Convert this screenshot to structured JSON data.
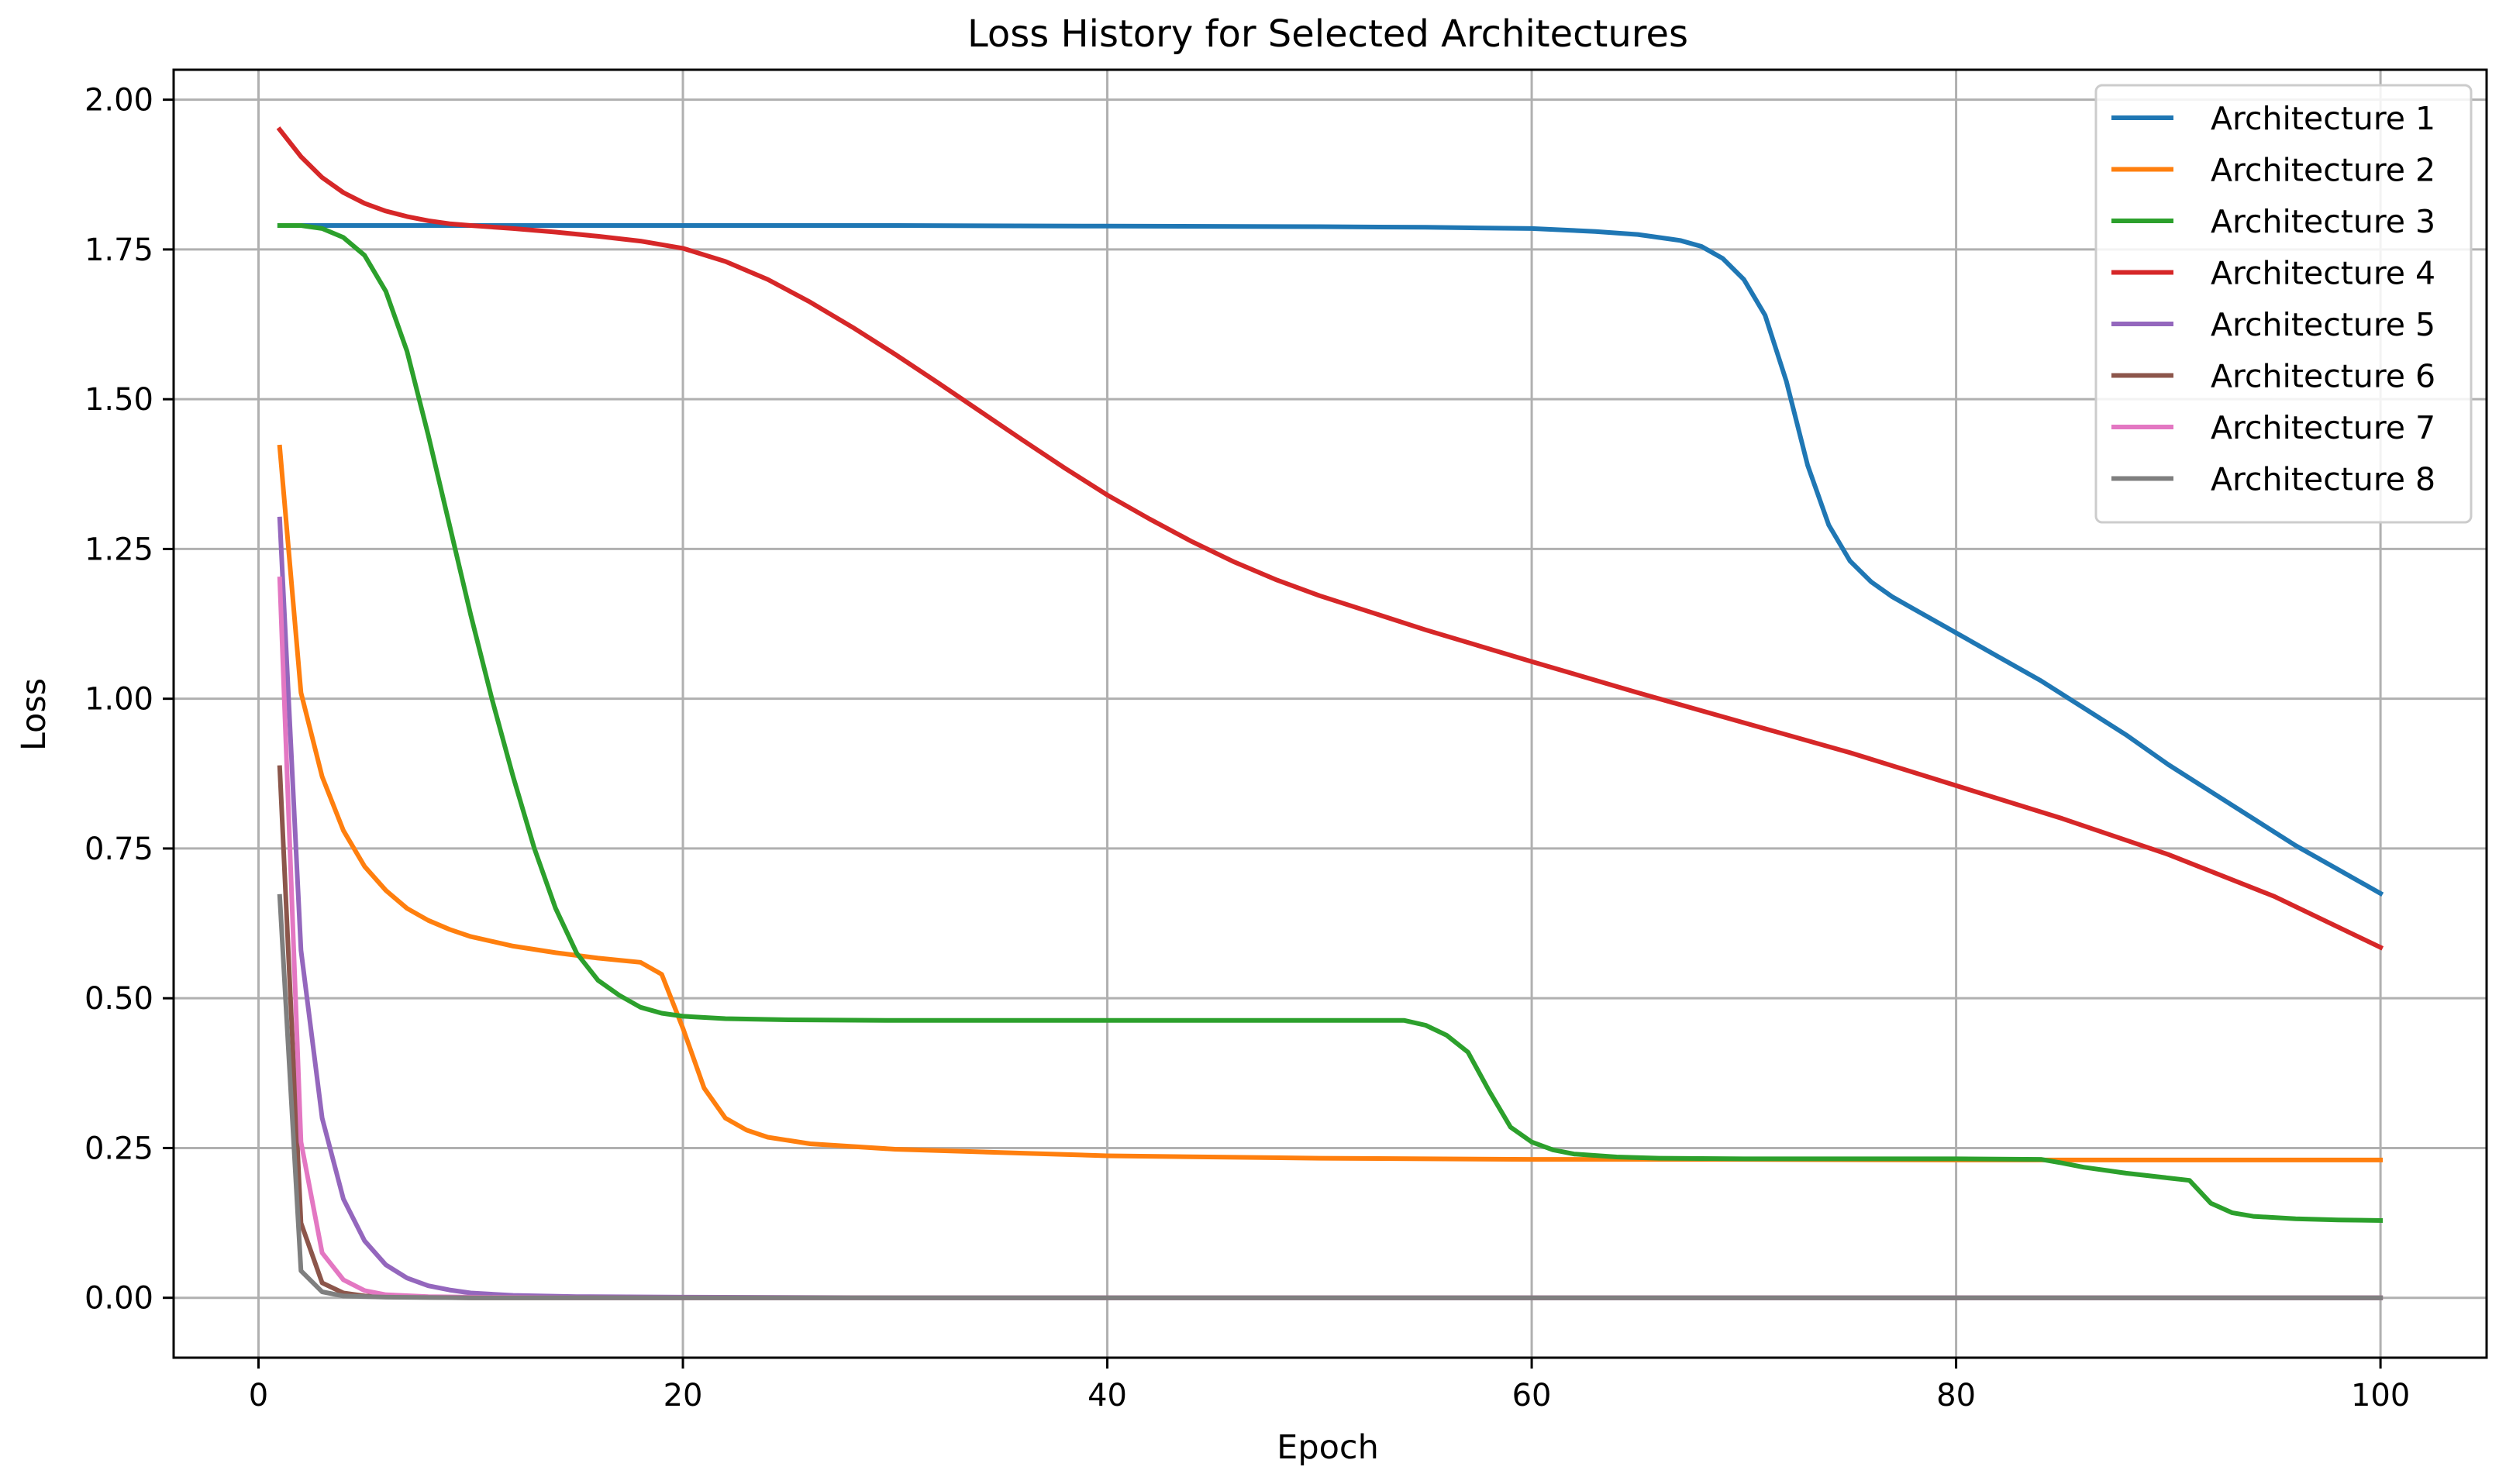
{
  "chart_data": {
    "type": "line",
    "title": "Loss History for Selected Architectures",
    "xlabel": "Epoch",
    "ylabel": "Loss",
    "xlim": [
      -4,
      105
    ],
    "ylim": [
      -0.1,
      2.05
    ],
    "xticks": [
      0,
      20,
      40,
      60,
      80,
      100
    ],
    "yticks": [
      0.0,
      0.25,
      0.5,
      0.75,
      1.0,
      1.25,
      1.5,
      1.75,
      2.0
    ],
    "xtick_labels": [
      "0",
      "20",
      "40",
      "60",
      "80",
      "100"
    ],
    "ytick_labels": [
      "0.00",
      "0.25",
      "0.50",
      "0.75",
      "1.00",
      "1.25",
      "1.50",
      "1.75",
      "2.00"
    ],
    "grid": true,
    "legend_position": "top-right",
    "x": "epochs 1-100",
    "series": [
      {
        "name": "Architecture 1",
        "color": "#1f77b4",
        "points": [
          [
            1,
            1.79
          ],
          [
            10,
            1.79
          ],
          [
            20,
            1.79
          ],
          [
            30,
            1.79
          ],
          [
            40,
            1.789
          ],
          [
            50,
            1.788
          ],
          [
            55,
            1.787
          ],
          [
            60,
            1.785
          ],
          [
            63,
            1.78
          ],
          [
            65,
            1.775
          ],
          [
            67,
            1.765
          ],
          [
            68,
            1.755
          ],
          [
            69,
            1.735
          ],
          [
            70,
            1.7
          ],
          [
            71,
            1.64
          ],
          [
            72,
            1.53
          ],
          [
            73,
            1.39
          ],
          [
            74,
            1.29
          ],
          [
            75,
            1.23
          ],
          [
            76,
            1.195
          ],
          [
            77,
            1.17
          ],
          [
            78,
            1.15
          ],
          [
            80,
            1.11
          ],
          [
            82,
            1.07
          ],
          [
            84,
            1.03
          ],
          [
            86,
            0.985
          ],
          [
            88,
            0.94
          ],
          [
            90,
            0.89
          ],
          [
            92,
            0.845
          ],
          [
            94,
            0.8
          ],
          [
            96,
            0.755
          ],
          [
            98,
            0.715
          ],
          [
            100,
            0.675
          ]
        ]
      },
      {
        "name": "Architecture 2",
        "color": "#ff7f0e",
        "points": [
          [
            1,
            1.42
          ],
          [
            2,
            1.01
          ],
          [
            3,
            0.87
          ],
          [
            4,
            0.78
          ],
          [
            5,
            0.72
          ],
          [
            6,
            0.68
          ],
          [
            7,
            0.65
          ],
          [
            8,
            0.63
          ],
          [
            9,
            0.615
          ],
          [
            10,
            0.603
          ],
          [
            12,
            0.587
          ],
          [
            14,
            0.576
          ],
          [
            16,
            0.567
          ],
          [
            18,
            0.56
          ],
          [
            19,
            0.54
          ],
          [
            20,
            0.45
          ],
          [
            21,
            0.35
          ],
          [
            22,
            0.3
          ],
          [
            23,
            0.28
          ],
          [
            24,
            0.268
          ],
          [
            26,
            0.257
          ],
          [
            30,
            0.248
          ],
          [
            40,
            0.237
          ],
          [
            50,
            0.233
          ],
          [
            60,
            0.231
          ],
          [
            70,
            0.231
          ],
          [
            80,
            0.23
          ],
          [
            90,
            0.23
          ],
          [
            100,
            0.23
          ]
        ]
      },
      {
        "name": "Architecture 3",
        "color": "#2ca02c",
        "points": [
          [
            1,
            1.79
          ],
          [
            2,
            1.79
          ],
          [
            3,
            1.785
          ],
          [
            4,
            1.77
          ],
          [
            5,
            1.74
          ],
          [
            6,
            1.68
          ],
          [
            7,
            1.58
          ],
          [
            8,
            1.44
          ],
          [
            9,
            1.29
          ],
          [
            10,
            1.14
          ],
          [
            11,
            1.0
          ],
          [
            12,
            0.87
          ],
          [
            13,
            0.75
          ],
          [
            14,
            0.65
          ],
          [
            15,
            0.575
          ],
          [
            16,
            0.53
          ],
          [
            17,
            0.505
          ],
          [
            18,
            0.485
          ],
          [
            19,
            0.475
          ],
          [
            20,
            0.47
          ],
          [
            22,
            0.466
          ],
          [
            25,
            0.464
          ],
          [
            30,
            0.463
          ],
          [
            40,
            0.463
          ],
          [
            50,
            0.463
          ],
          [
            54,
            0.463
          ],
          [
            55,
            0.455
          ],
          [
            56,
            0.438
          ],
          [
            57,
            0.41
          ],
          [
            58,
            0.345
          ],
          [
            59,
            0.285
          ],
          [
            60,
            0.26
          ],
          [
            61,
            0.247
          ],
          [
            62,
            0.24
          ],
          [
            64,
            0.235
          ],
          [
            66,
            0.233
          ],
          [
            70,
            0.232
          ],
          [
            80,
            0.232
          ],
          [
            84,
            0.231
          ],
          [
            85,
            0.225
          ],
          [
            86,
            0.218
          ],
          [
            88,
            0.208
          ],
          [
            90,
            0.2
          ],
          [
            91,
            0.196
          ],
          [
            92,
            0.158
          ],
          [
            93,
            0.142
          ],
          [
            94,
            0.136
          ],
          [
            96,
            0.132
          ],
          [
            98,
            0.13
          ],
          [
            100,
            0.129
          ]
        ]
      },
      {
        "name": "Architecture 4",
        "color": "#d62728",
        "points": [
          [
            1,
            1.95
          ],
          [
            2,
            1.905
          ],
          [
            3,
            1.87
          ],
          [
            4,
            1.845
          ],
          [
            5,
            1.827
          ],
          [
            6,
            1.814
          ],
          [
            7,
            1.805
          ],
          [
            8,
            1.798
          ],
          [
            9,
            1.793
          ],
          [
            10,
            1.79
          ],
          [
            12,
            1.785
          ],
          [
            14,
            1.779
          ],
          [
            16,
            1.772
          ],
          [
            18,
            1.764
          ],
          [
            20,
            1.752
          ],
          [
            22,
            1.73
          ],
          [
            24,
            1.7
          ],
          [
            26,
            1.662
          ],
          [
            28,
            1.62
          ],
          [
            30,
            1.575
          ],
          [
            32,
            1.528
          ],
          [
            34,
            1.48
          ],
          [
            36,
            1.432
          ],
          [
            38,
            1.385
          ],
          [
            40,
            1.34
          ],
          [
            42,
            1.3
          ],
          [
            44,
            1.262
          ],
          [
            46,
            1.228
          ],
          [
            48,
            1.198
          ],
          [
            50,
            1.172
          ],
          [
            55,
            1.115
          ],
          [
            60,
            1.062
          ],
          [
            65,
            1.01
          ],
          [
            70,
            0.96
          ],
          [
            75,
            0.91
          ],
          [
            80,
            0.855
          ],
          [
            85,
            0.8
          ],
          [
            90,
            0.74
          ],
          [
            95,
            0.67
          ],
          [
            100,
            0.585
          ]
        ]
      },
      {
        "name": "Architecture 5",
        "color": "#9467bd",
        "points": [
          [
            1,
            1.3
          ],
          [
            2,
            0.58
          ],
          [
            3,
            0.3
          ],
          [
            4,
            0.165
          ],
          [
            5,
            0.095
          ],
          [
            6,
            0.055
          ],
          [
            7,
            0.033
          ],
          [
            8,
            0.02
          ],
          [
            9,
            0.013
          ],
          [
            10,
            0.008
          ],
          [
            12,
            0.004
          ],
          [
            15,
            0.002
          ],
          [
            20,
            0.001
          ],
          [
            30,
            0.0
          ],
          [
            50,
            0.0
          ],
          [
            100,
            0.0
          ]
        ]
      },
      {
        "name": "Architecture 6",
        "color": "#8c564b",
        "points": [
          [
            1,
            0.885
          ],
          [
            2,
            0.125
          ],
          [
            3,
            0.025
          ],
          [
            4,
            0.008
          ],
          [
            5,
            0.003
          ],
          [
            7,
            0.001
          ],
          [
            10,
            0.0
          ],
          [
            50,
            0.0
          ],
          [
            100,
            0.0
          ]
        ]
      },
      {
        "name": "Architecture 7",
        "color": "#e377c2",
        "points": [
          [
            1,
            1.2
          ],
          [
            2,
            0.26
          ],
          [
            3,
            0.075
          ],
          [
            4,
            0.03
          ],
          [
            5,
            0.012
          ],
          [
            6,
            0.005
          ],
          [
            8,
            0.002
          ],
          [
            10,
            0.001
          ],
          [
            15,
            0.0
          ],
          [
            50,
            0.0
          ],
          [
            100,
            0.0
          ]
        ]
      },
      {
        "name": "Architecture 8",
        "color": "#7f7f7f",
        "points": [
          [
            1,
            0.67
          ],
          [
            2,
            0.045
          ],
          [
            3,
            0.01
          ],
          [
            4,
            0.003
          ],
          [
            6,
            0.001
          ],
          [
            10,
            0.0
          ],
          [
            50,
            0.0
          ],
          [
            100,
            0.0
          ]
        ]
      }
    ]
  }
}
